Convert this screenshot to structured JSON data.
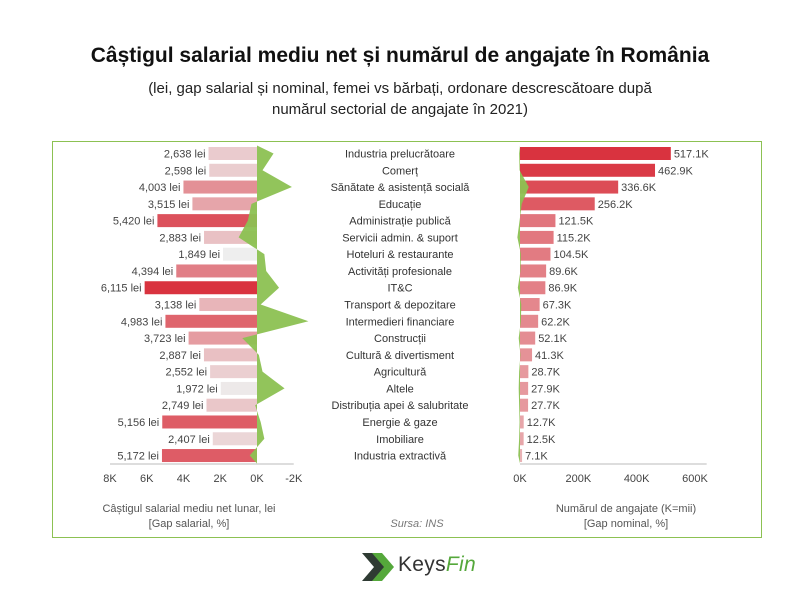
{
  "header": {
    "title": "Câștigul salarial mediu net și numărul de angajate în România",
    "subtitle_line1": "(lei, gap salarial și nominal, femei vs bărbați, ordonare descrescătoare după",
    "subtitle_line2": "numărul sectorial de angajate în 2021)"
  },
  "footer": {
    "left_axis_title_line1": "Câștigul salarial mediu net lunar, lei",
    "left_axis_title_line2": "[Gap salarial, %]",
    "source": "Sursa: INS",
    "right_axis_title_line1": "Numărul de angajate (K=mii)",
    "right_axis_title_line2": "[Gap nominal, %]"
  },
  "logo": {
    "text_a": "Keys",
    "text_b": "Fin",
    "icon": "keysfin-chevron-logo"
  },
  "colors": {
    "accent_green": "#8cc152",
    "bar_red": "#d9333f",
    "bar_light": "#eeeeee",
    "panel_border": "#8cc152"
  },
  "chart_data": [
    {
      "type": "bar",
      "orientation": "horizontal",
      "categories": [
        "Industria prelucrătoare",
        "Comerț",
        "Sănătate & asistență socială",
        "Educație",
        "Administrație publică",
        "Servicii admin. & suport",
        "Hoteluri & restaurante",
        "Activități profesionale",
        "IT&C",
        "Transport & depozitare",
        "Intermedieri financiare",
        "Construcții",
        "Cultură & divertisment",
        "Agricultură",
        "Altele",
        "Distribuția apei & salubritate",
        "Energie & gaze",
        "Imobiliare",
        "Industria extractivă"
      ],
      "values": [
        2638,
        2598,
        4003,
        3515,
        5420,
        2883,
        1849,
        4394,
        6115,
        3138,
        4983,
        3723,
        2887,
        2552,
        1972,
        2749,
        5156,
        2407,
        5172
      ],
      "data_labels": [
        "2,638 lei",
        "2,598 lei",
        "4,003 lei",
        "3,515 lei",
        "5,420 lei",
        "2,883 lei",
        "1,849 lei",
        "4,394 lei",
        "6,115 lei",
        "3,138 lei",
        "4,983 lei",
        "3,723 lei",
        "2,887 lei",
        "2,552 lei",
        "1,972 lei",
        "2,749 lei",
        "5,156 lei",
        "2,407 lei",
        "5,172 lei"
      ],
      "xlim": [
        -2000,
        8000
      ],
      "xticks": [
        "8K",
        "6K",
        "4K",
        "2K",
        "0K",
        "-2K"
      ],
      "xlabel": "Câștigul salarial mediu net lunar, lei",
      "xlabel2": "[Gap salarial, %]",
      "gap_line_values_K": [
        -0.9,
        -0.3,
        -1.9,
        0.3,
        0.5,
        1.0,
        -0.4,
        -0.5,
        -1.2,
        -0.2,
        -2.8,
        0.8,
        -0.1,
        -0.3,
        -1.5,
        0.1,
        -0.2,
        -0.4,
        0.4
      ]
    },
    {
      "type": "bar",
      "orientation": "horizontal",
      "categories": [
        "Industria prelucrătoare",
        "Comerț",
        "Sănătate & asistență socială",
        "Educație",
        "Administrație publică",
        "Servicii admin. & suport",
        "Hoteluri & restaurante",
        "Activități profesionale",
        "IT&C",
        "Transport & depozitare",
        "Intermedieri financiare",
        "Construcții",
        "Cultură & divertisment",
        "Agricultură",
        "Altele",
        "Distribuția apei & salubritate",
        "Energie & gaze",
        "Imobiliare",
        "Industria extractivă"
      ],
      "values": [
        517.1,
        462.9,
        336.6,
        256.2,
        121.5,
        115.2,
        104.5,
        89.6,
        86.9,
        67.3,
        62.2,
        52.1,
        41.3,
        28.7,
        27.9,
        27.7,
        12.7,
        12.5,
        7.1
      ],
      "data_labels": [
        "517.1K",
        "462.9K",
        "336.6K",
        "256.2K",
        "121.5K",
        "115.2K",
        "104.5K",
        "89.6K",
        "86.9K",
        "67.3K",
        "62.2K",
        "52.1K",
        "41.3K",
        "28.7K",
        "27.9K",
        "27.7K",
        "12.7K",
        "12.5K",
        "7.1K"
      ],
      "xlim": [
        0,
        650
      ],
      "xticks": [
        "0K",
        "200K",
        "400K",
        "600K"
      ],
      "xlabel": "Numărul de angajate (K=mii)",
      "xlabel2": "[Gap nominal, %]",
      "gap_line_values_K": [
        -10,
        -5,
        100,
        20,
        -5,
        -30,
        10,
        5,
        -25,
        15,
        10,
        -15,
        5,
        -10,
        -15,
        -10,
        -5,
        -10,
        -20
      ]
    }
  ]
}
